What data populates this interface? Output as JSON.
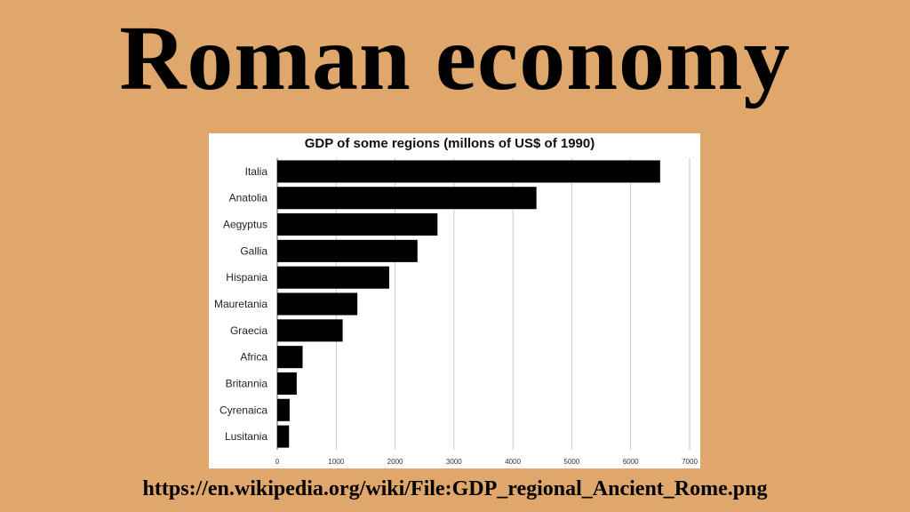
{
  "slide": {
    "title": "Roman economy",
    "source_url": "https://en.wikipedia.org/wiki/File:GDP_regional_Ancient_Rome.png"
  },
  "colors": {
    "background": "#dfa76c",
    "panel": "#ffffff",
    "bar": "#000000",
    "grid": "#bdbdbd"
  },
  "chart_data": {
    "type": "bar",
    "orientation": "horizontal",
    "title": "GDP of some regions (millons of US$ of 1990)",
    "xlabel": "",
    "ylabel": "",
    "categories": [
      "Italia",
      "Anatolia",
      "Aegyptus",
      "Gallia",
      "Hispania",
      "Mauretania",
      "Graecia",
      "Africa",
      "Britannia",
      "Cyrenaica",
      "Lusitania"
    ],
    "values": [
      6500,
      4400,
      2720,
      2380,
      1900,
      1360,
      1110,
      430,
      330,
      210,
      200
    ],
    "xlim": [
      0,
      7000
    ],
    "ticks": [
      "0",
      "1000",
      "2000",
      "3000",
      "4000",
      "5000",
      "6000",
      "7000"
    ],
    "grid": true,
    "legend": "none"
  }
}
